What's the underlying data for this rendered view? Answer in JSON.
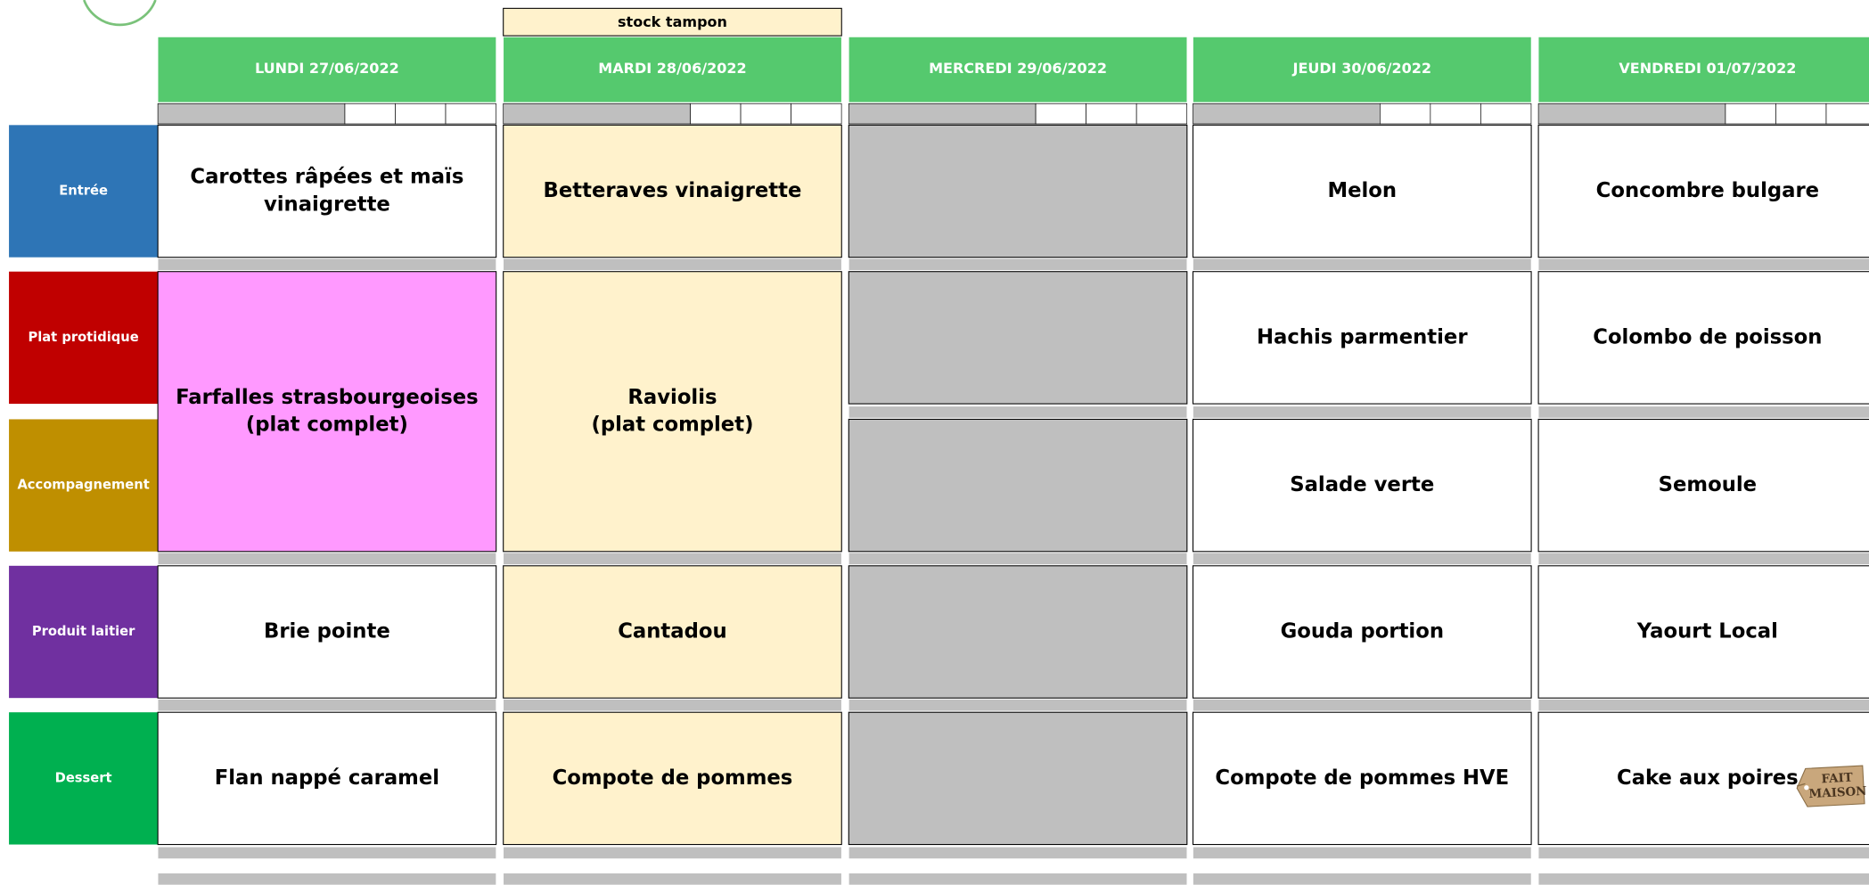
{
  "stock_label": "stock tampon",
  "row_labels": [
    "Entrée",
    "Plat protidique",
    "Accompagnement",
    "Produit laitier",
    "Dessert"
  ],
  "columns": [
    {
      "header": "LUNDI  27/06/2022",
      "cells": [
        [
          "Carottes râpées et maïs",
          "vinaigrette"
        ],
        [
          "Farfalles strasbourgeoises",
          "(plat complet)"
        ],
        [
          "Brie pointe"
        ],
        [
          "Flan nappé caramel"
        ]
      ]
    },
    {
      "header": "MARDI 28/06/2022",
      "cells": [
        [
          "Betteraves vinaigrette"
        ],
        [
          "Raviolis",
          "(plat complet)"
        ],
        [
          "Cantadou"
        ],
        [
          "Compote de pommes"
        ]
      ]
    },
    {
      "header": "MERCREDI 29/06/2022"
    },
    {
      "header": "JEUDI 30/06/2022",
      "cells": [
        [
          "Melon"
        ],
        [
          "Hachis parmentier"
        ],
        [
          "Salade verte"
        ],
        [
          "Gouda portion"
        ],
        [
          "Compote de pommes HVE"
        ]
      ]
    },
    {
      "header": "VENDREDI 01/07/2022",
      "cells": [
        [
          "Concombre bulgare"
        ],
        [
          "Colombo de poisson"
        ],
        [
          "Semoule"
        ],
        [
          "Yaourt Local"
        ],
        [
          "Cake aux poires"
        ]
      ]
    }
  ],
  "tag": [
    "FAIT",
    "MAISON"
  ]
}
